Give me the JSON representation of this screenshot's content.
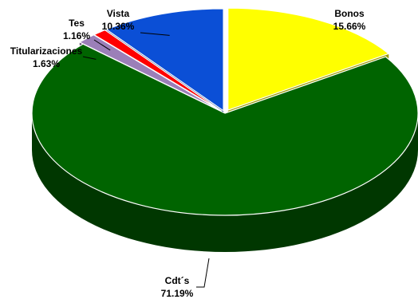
{
  "chart_data": {
    "type": "pie",
    "title": "",
    "slices": [
      {
        "label": "Bonos",
        "value": 15.66,
        "value_text": "15.66%",
        "color": "#FFFF00"
      },
      {
        "label": "Cdt´s",
        "value": 71.19,
        "value_text": "71.19%",
        "color": "#006400"
      },
      {
        "label": "Titularizaciones",
        "value": 1.63,
        "value_text": "1.63%",
        "color": "#9B7FB8"
      },
      {
        "label": "Tes",
        "value": 1.16,
        "value_text": "1.16%",
        "color": "#FF0000"
      },
      {
        "label": "Vista",
        "value": 10.36,
        "value_text": "10.36%",
        "color": "#0B4FD6"
      }
    ],
    "exploded": true,
    "three_d": true,
    "legend": "none"
  }
}
